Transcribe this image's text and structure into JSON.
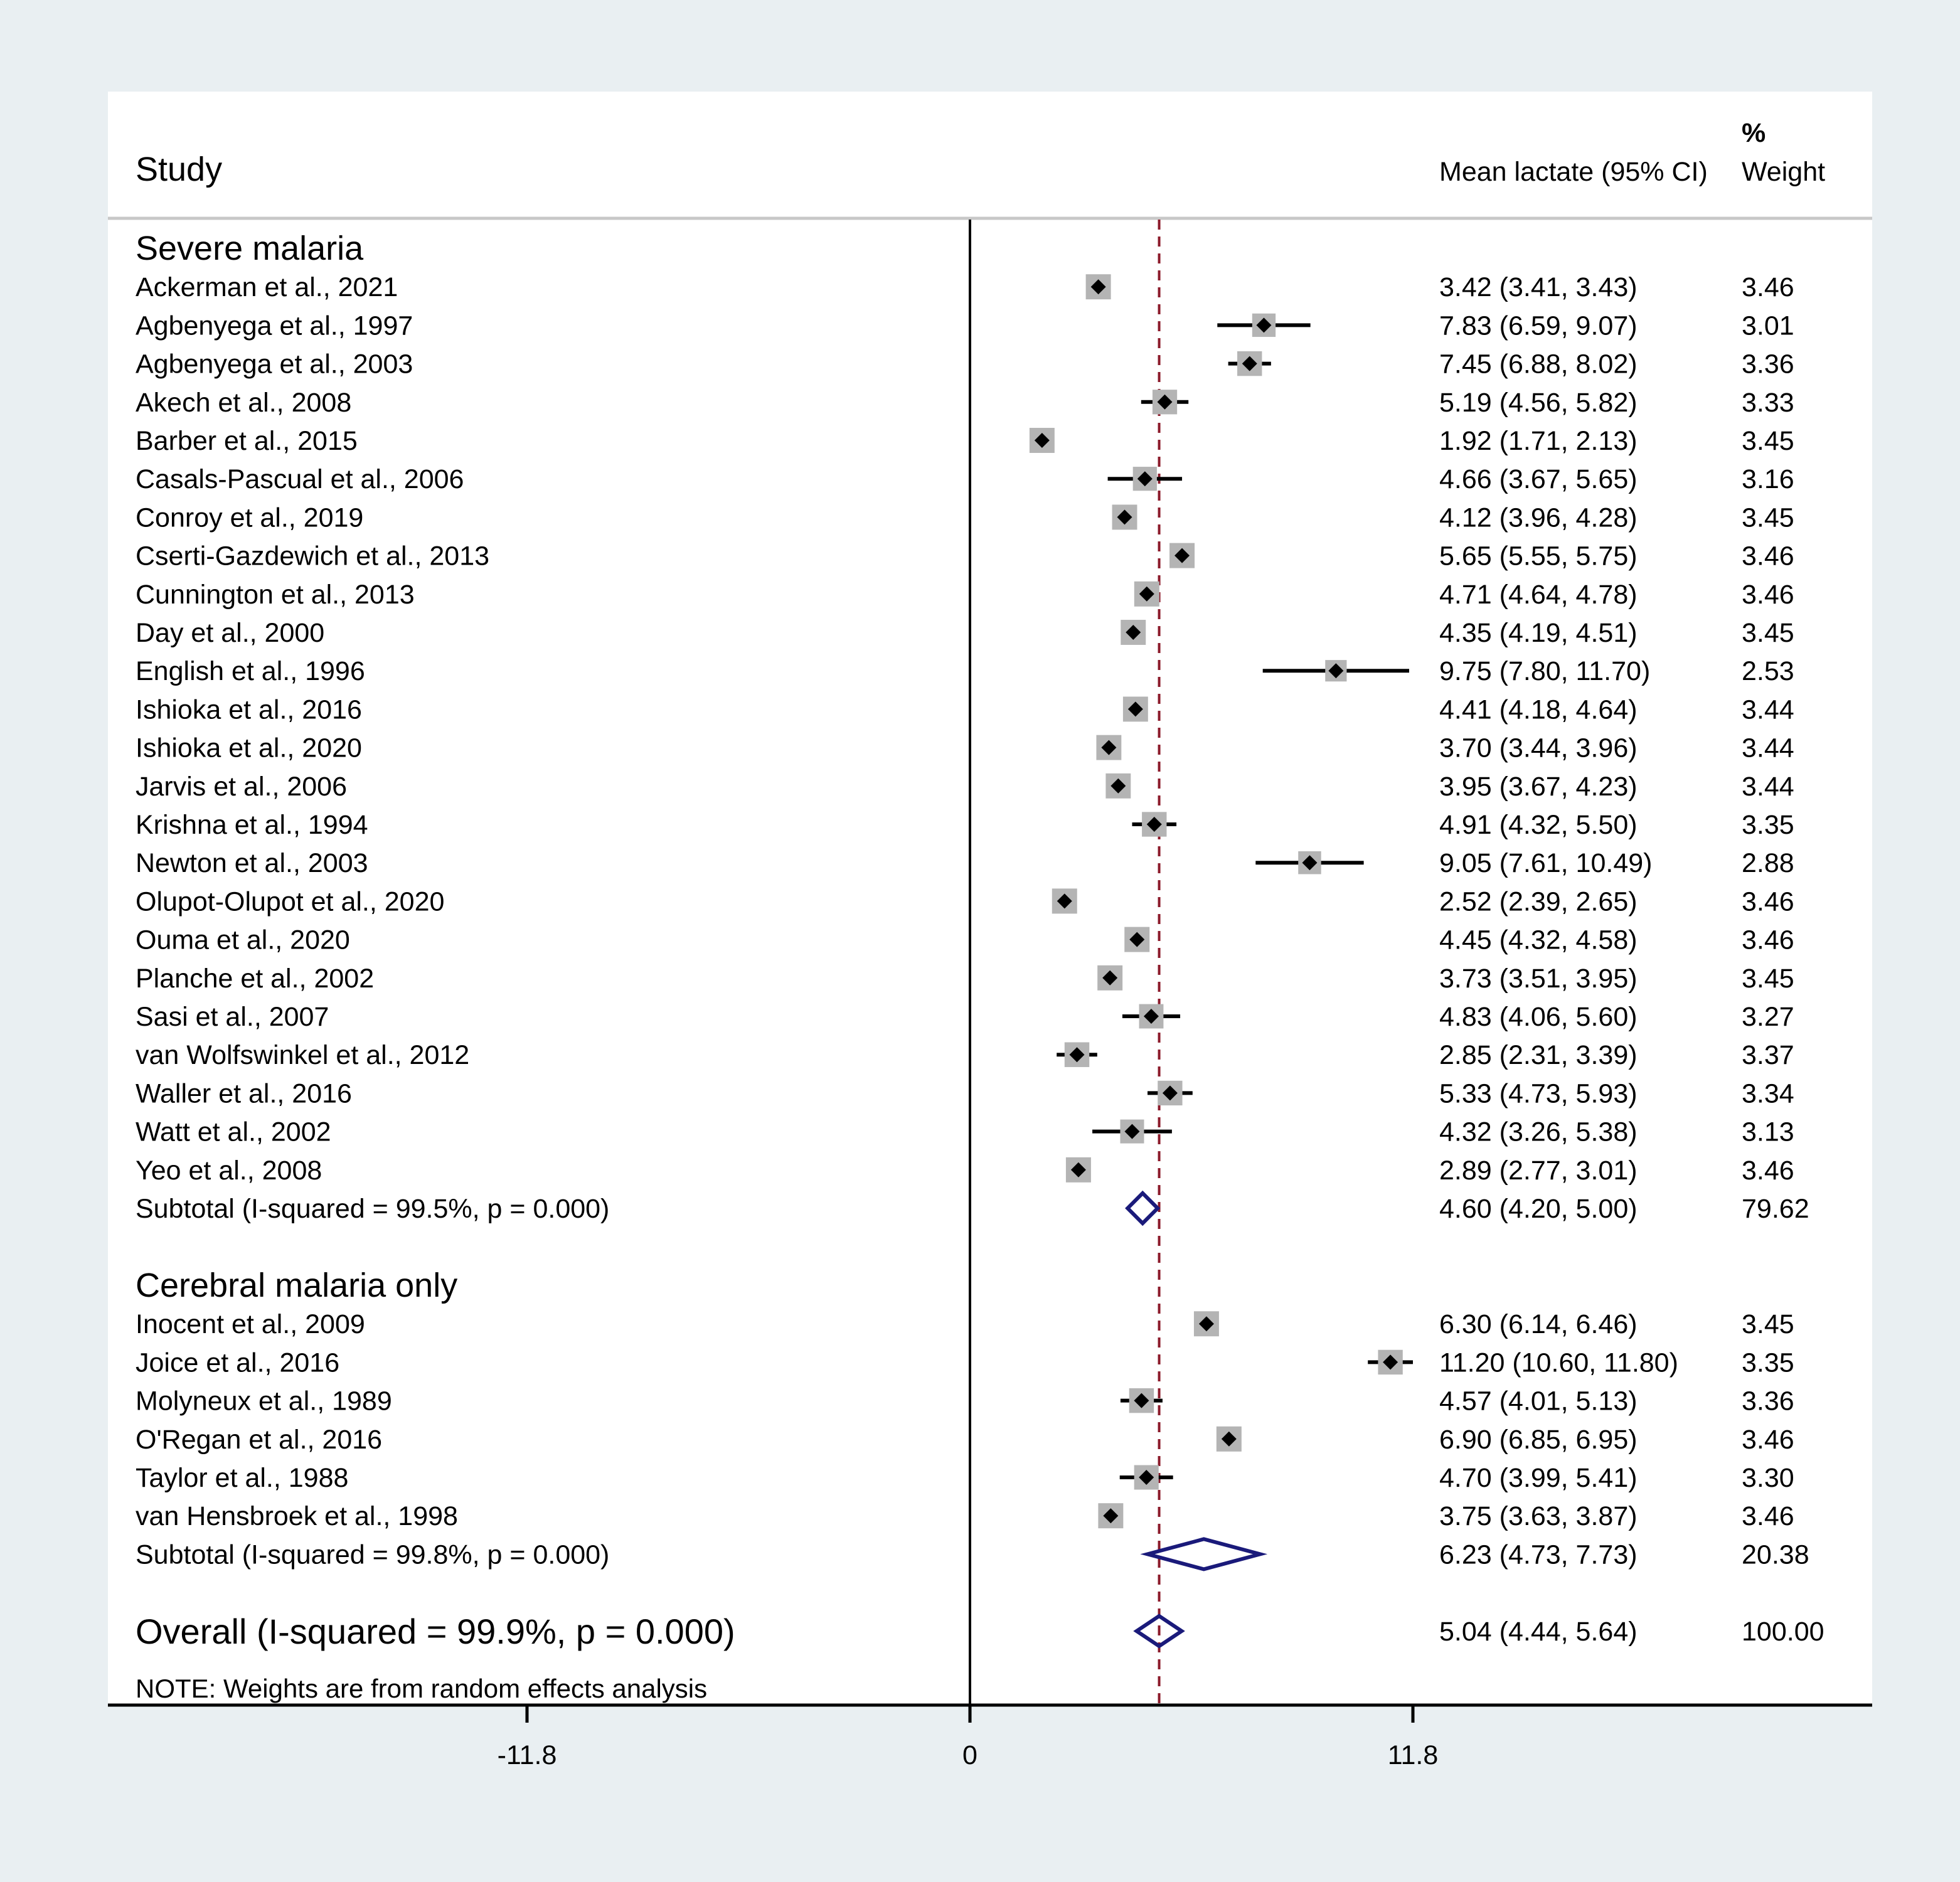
{
  "chart_data": {
    "type": "forest",
    "header": {
      "study": "Study",
      "effect": "Mean lactate (95% CI)",
      "weight_pct": "%",
      "weight": "Weight"
    },
    "groups": [
      {
        "name": "Severe malaria",
        "studies": [
          {
            "label": "Ackerman et al., 2021",
            "mean": 3.42,
            "lo": 3.41,
            "hi": 3.43,
            "ci": "3.42 (3.41, 3.43)",
            "weight": "3.46"
          },
          {
            "label": "Agbenyega et al., 1997",
            "mean": 7.83,
            "lo": 6.59,
            "hi": 9.07,
            "ci": "7.83 (6.59, 9.07)",
            "weight": "3.01"
          },
          {
            "label": "Agbenyega et al., 2003",
            "mean": 7.45,
            "lo": 6.88,
            "hi": 8.02,
            "ci": "7.45 (6.88, 8.02)",
            "weight": "3.36"
          },
          {
            "label": "Akech et al., 2008",
            "mean": 5.19,
            "lo": 4.56,
            "hi": 5.82,
            "ci": "5.19 (4.56, 5.82)",
            "weight": "3.33"
          },
          {
            "label": "Barber et al., 2015",
            "mean": 1.92,
            "lo": 1.71,
            "hi": 2.13,
            "ci": "1.92 (1.71, 2.13)",
            "weight": "3.45"
          },
          {
            "label": "Casals-Pascual et al., 2006",
            "mean": 4.66,
            "lo": 3.67,
            "hi": 5.65,
            "ci": "4.66 (3.67, 5.65)",
            "weight": "3.16"
          },
          {
            "label": "Conroy et al., 2019",
            "mean": 4.12,
            "lo": 3.96,
            "hi": 4.28,
            "ci": "4.12 (3.96, 4.28)",
            "weight": "3.45"
          },
          {
            "label": "Cserti-Gazdewich et al., 2013",
            "mean": 5.65,
            "lo": 5.55,
            "hi": 5.75,
            "ci": "5.65 (5.55, 5.75)",
            "weight": "3.46"
          },
          {
            "label": "Cunnington et al., 2013",
            "mean": 4.71,
            "lo": 4.64,
            "hi": 4.78,
            "ci": "4.71 (4.64, 4.78)",
            "weight": "3.46"
          },
          {
            "label": "Day et al., 2000",
            "mean": 4.35,
            "lo": 4.19,
            "hi": 4.51,
            "ci": "4.35 (4.19, 4.51)",
            "weight": "3.45"
          },
          {
            "label": "English et al., 1996",
            "mean": 9.75,
            "lo": 7.8,
            "hi": 11.7,
            "ci": "9.75 (7.80, 11.70)",
            "weight": "2.53"
          },
          {
            "label": "Ishioka et al., 2016",
            "mean": 4.41,
            "lo": 4.18,
            "hi": 4.64,
            "ci": "4.41 (4.18, 4.64)",
            "weight": "3.44"
          },
          {
            "label": "Ishioka et al., 2020",
            "mean": 3.7,
            "lo": 3.44,
            "hi": 3.96,
            "ci": "3.70 (3.44, 3.96)",
            "weight": "3.44"
          },
          {
            "label": "Jarvis et al., 2006",
            "mean": 3.95,
            "lo": 3.67,
            "hi": 4.23,
            "ci": "3.95 (3.67, 4.23)",
            "weight": "3.44"
          },
          {
            "label": "Krishna et al., 1994",
            "mean": 4.91,
            "lo": 4.32,
            "hi": 5.5,
            "ci": "4.91 (4.32, 5.50)",
            "weight": "3.35"
          },
          {
            "label": "Newton et al., 2003",
            "mean": 9.05,
            "lo": 7.61,
            "hi": 10.49,
            "ci": "9.05 (7.61, 10.49)",
            "weight": "2.88"
          },
          {
            "label": "Olupot-Olupot et al., 2020",
            "mean": 2.52,
            "lo": 2.39,
            "hi": 2.65,
            "ci": "2.52 (2.39, 2.65)",
            "weight": "3.46"
          },
          {
            "label": "Ouma et al., 2020",
            "mean": 4.45,
            "lo": 4.32,
            "hi": 4.58,
            "ci": "4.45 (4.32, 4.58)",
            "weight": "3.46"
          },
          {
            "label": "Planche et al., 2002",
            "mean": 3.73,
            "lo": 3.51,
            "hi": 3.95,
            "ci": "3.73 (3.51, 3.95)",
            "weight": "3.45"
          },
          {
            "label": "Sasi et al., 2007",
            "mean": 4.83,
            "lo": 4.06,
            "hi": 5.6,
            "ci": "4.83 (4.06, 5.60)",
            "weight": "3.27"
          },
          {
            "label": "van Wolfswinkel et al., 2012",
            "mean": 2.85,
            "lo": 2.31,
            "hi": 3.39,
            "ci": "2.85 (2.31, 3.39)",
            "weight": "3.37"
          },
          {
            "label": "Waller et al., 2016",
            "mean": 5.33,
            "lo": 4.73,
            "hi": 5.93,
            "ci": "5.33 (4.73, 5.93)",
            "weight": "3.34"
          },
          {
            "label": "Watt et al., 2002",
            "mean": 4.32,
            "lo": 3.26,
            "hi": 5.38,
            "ci": "4.32 (3.26, 5.38)",
            "weight": "3.13"
          },
          {
            "label": "Yeo et al., 2008",
            "mean": 2.89,
            "lo": 2.77,
            "hi": 3.01,
            "ci": "2.89 (2.77, 3.01)",
            "weight": "3.46"
          }
        ],
        "subtotal": {
          "label": "Subtotal  (I-squared = 99.5%, p = 0.000)",
          "mean": 4.6,
          "lo": 4.2,
          "hi": 5.0,
          "ci": "4.60 (4.20, 5.00)",
          "weight": "79.62"
        }
      },
      {
        "name": "Cerebral malaria only",
        "studies": [
          {
            "label": "Inocent et al., 2009",
            "mean": 6.3,
            "lo": 6.14,
            "hi": 6.46,
            "ci": "6.30 (6.14, 6.46)",
            "weight": "3.45"
          },
          {
            "label": "Joice et al., 2016",
            "mean": 11.2,
            "lo": 10.6,
            "hi": 11.8,
            "ci": "11.20 (10.60, 11.80)",
            "weight": "3.35"
          },
          {
            "label": "Molyneux et al., 1989",
            "mean": 4.57,
            "lo": 4.01,
            "hi": 5.13,
            "ci": "4.57 (4.01, 5.13)",
            "weight": "3.36"
          },
          {
            "label": "O'Regan et al., 2016",
            "mean": 6.9,
            "lo": 6.85,
            "hi": 6.95,
            "ci": "6.90 (6.85, 6.95)",
            "weight": "3.46"
          },
          {
            "label": "Taylor et al., 1988",
            "mean": 4.7,
            "lo": 3.99,
            "hi": 5.41,
            "ci": "4.70 (3.99, 5.41)",
            "weight": "3.30"
          },
          {
            "label": "van Hensbroek et al., 1998",
            "mean": 3.75,
            "lo": 3.63,
            "hi": 3.87,
            "ci": "3.75 (3.63, 3.87)",
            "weight": "3.46"
          }
        ],
        "subtotal": {
          "label": "Subtotal  (I-squared = 99.8%, p = 0.000)",
          "mean": 6.23,
          "lo": 4.73,
          "hi": 7.73,
          "ci": "6.23 (4.73, 7.73)",
          "weight": "20.38"
        }
      }
    ],
    "overall": {
      "label": "Overall  (I-squared = 99.9%, p = 0.000)",
      "mean": 5.04,
      "lo": 4.44,
      "hi": 5.64,
      "ci": "5.04 (4.44, 5.64)",
      "weight": "100.00"
    },
    "note": "NOTE: Weights are from random effects analysis",
    "x_axis": {
      "ticks": [
        -11.8,
        0,
        11.8
      ],
      "tick_labels": [
        "-11.8",
        "0",
        "11.8"
      ],
      "range": [
        -11.8,
        11.8
      ],
      "null_line": 0
    },
    "colors": {
      "background": "#e9eff2",
      "panel": "#ffffff",
      "marker": "#000000",
      "weight_box": "#b4b4b4",
      "diamond": "#1a1a7a",
      "overall_line": "#8b1a2a",
      "divider": "#c8c8c8"
    }
  }
}
